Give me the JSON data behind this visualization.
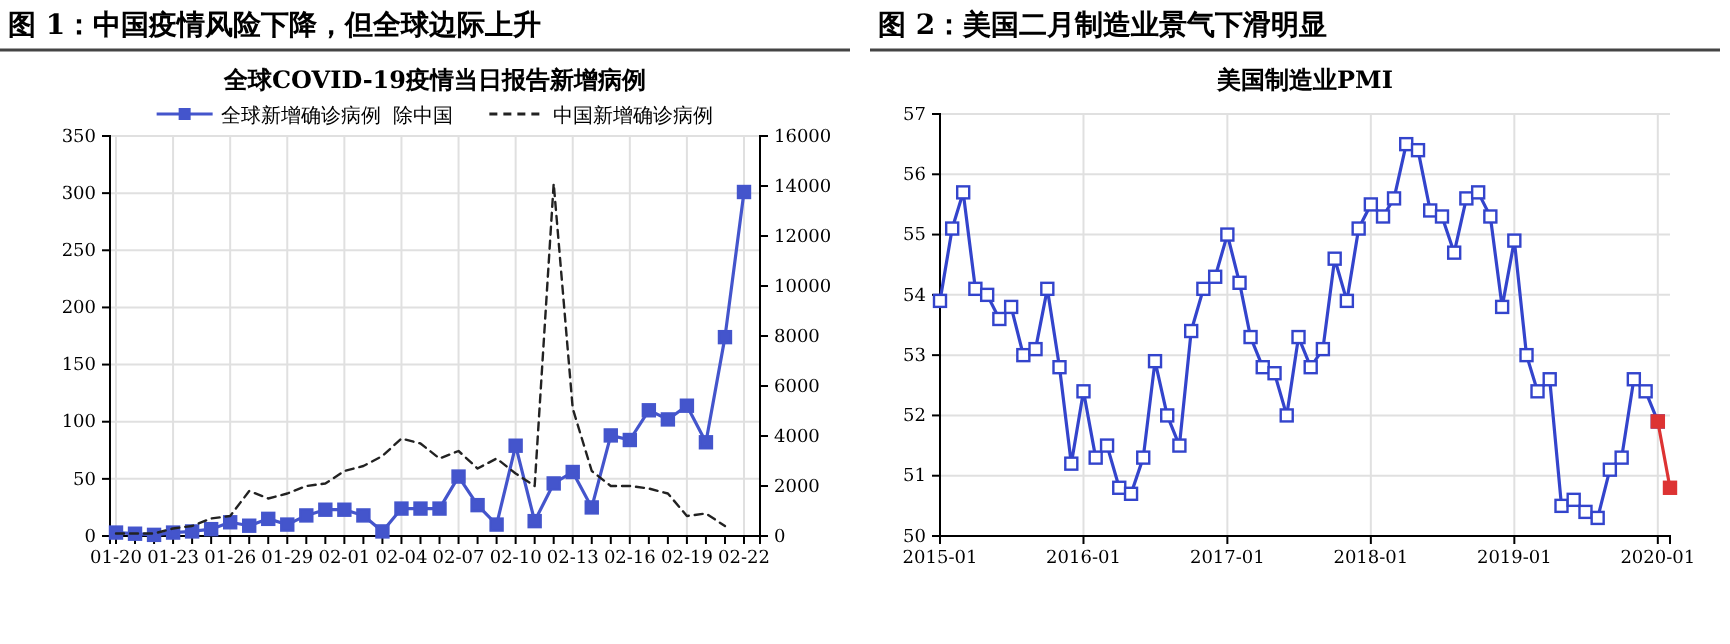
{
  "chart_data": [
    {
      "type": "line",
      "title": "图 1：中国疫情风险下降，但全球边际上升",
      "subtitle": "全球COVID-19疫情当日报告新增病例",
      "categories": [
        "01-20",
        null,
        null,
        "01-23",
        null,
        null,
        "01-26",
        null,
        null,
        "01-29",
        null,
        null,
        "02-01",
        null,
        null,
        "02-04",
        null,
        null,
        "02-07",
        null,
        null,
        "02-10",
        null,
        null,
        "02-13",
        null,
        null,
        "02-16",
        null,
        null,
        "02-19",
        null,
        null,
        "02-22"
      ],
      "series": [
        {
          "name": "全球新增确诊病例  除中国",
          "color": "#4455cc",
          "marker": "square",
          "line_style": "solid",
          "values": [
            3,
            2,
            1,
            3,
            4,
            6,
            12,
            9,
            15,
            10,
            18,
            23,
            23,
            18,
            4,
            24,
            24,
            24,
            52,
            27,
            10,
            79,
            13,
            46,
            56,
            25,
            88,
            84,
            110,
            102,
            114,
            82,
            174,
            301
          ]
        },
        {
          "name": "中国新增确诊病例",
          "color": "#222222",
          "axis": "y2",
          "marker": "none",
          "line_style": "dashed",
          "values": [
            100,
            100,
            100,
            300,
            400,
            700,
            800,
            1800,
            1500,
            1700,
            2000,
            2100,
            2600,
            2800,
            3200,
            3900,
            3700,
            3100,
            3400,
            2700,
            3100,
            2500,
            2000,
            14100,
            5100,
            2600,
            2000,
            2000,
            1900,
            1700,
            800,
            900,
            400,
            null
          ]
        }
      ],
      "ylim": [
        0,
        350
      ],
      "yticks": [
        0,
        50,
        100,
        150,
        200,
        250,
        300,
        350
      ],
      "y2lim": [
        0,
        16000
      ],
      "y2ticks": [
        0,
        2000,
        4000,
        6000,
        8000,
        10000,
        12000,
        14000,
        16000
      ],
      "grid": true,
      "legend": "top"
    },
    {
      "type": "line",
      "title": "图 2：美国二月制造业景气下滑明显",
      "subtitle": "美国制造业PMI",
      "series": [
        {
          "color": "#3344cc",
          "marker": "square",
          "x": [
            "2015-01",
            "2015-02",
            "2015-03",
            "2015-04",
            "2015-05",
            "2015-06",
            "2015-07",
            "2015-08",
            "2015-09",
            "2015-10",
            "2015-11",
            "2015-12",
            "2016-01",
            "2016-02",
            "2016-03",
            "2016-04",
            "2016-05",
            "2016-06",
            "2016-07",
            "2016-08",
            "2016-09",
            "2016-10",
            "2016-11",
            "2016-12",
            "2017-01",
            "2017-02",
            "2017-03",
            "2017-04",
            "2017-05",
            "2017-06",
            "2017-07",
            "2017-08",
            "2017-09",
            "2017-10",
            "2017-11",
            "2017-12",
            "2018-01",
            "2018-02",
            "2018-03",
            "2018-04",
            "2018-05",
            "2018-06",
            "2018-07",
            "2018-08",
            "2018-09",
            "2018-10",
            "2018-11",
            "2018-12",
            "2019-01",
            "2019-02",
            "2019-03",
            "2019-04",
            "2019-05",
            "2019-06",
            "2019-07",
            "2019-08",
            "2019-09",
            "2019-10",
            "2019-11",
            "2019-12",
            "2020-01"
          ],
          "values": [
            53.9,
            55.1,
            55.7,
            54.1,
            54.0,
            53.6,
            53.8,
            53.0,
            53.1,
            54.1,
            52.8,
            51.2,
            52.4,
            51.3,
            51.5,
            50.8,
            50.7,
            51.3,
            52.9,
            52.0,
            51.5,
            53.4,
            54.1,
            54.3,
            55.0,
            54.2,
            53.3,
            52.8,
            52.7,
            52.0,
            53.3,
            52.8,
            53.1,
            54.6,
            53.9,
            55.1,
            55.5,
            55.3,
            55.6,
            56.5,
            56.4,
            55.4,
            55.3,
            54.7,
            55.6,
            55.7,
            55.3,
            53.8,
            54.9,
            53.0,
            52.4,
            52.6,
            50.5,
            50.6,
            50.4,
            50.3,
            51.1,
            51.3,
            52.6,
            52.4,
            51.9
          ]
        },
        {
          "color": "#dd3333",
          "marker": "square",
          "x": [
            "2020-01",
            "2020-02"
          ],
          "values": [
            51.9,
            50.8
          ]
        }
      ],
      "xlim": [
        "2015-01",
        "2020-02"
      ],
      "xticks": [
        "2015-01",
        "2016-01",
        "2017-01",
        "2018-01",
        "2019-01",
        "2020-01"
      ],
      "ylim": [
        50,
        57
      ],
      "yticks": [
        50,
        51,
        52,
        53,
        54,
        55,
        56,
        57
      ],
      "grid": true
    }
  ]
}
